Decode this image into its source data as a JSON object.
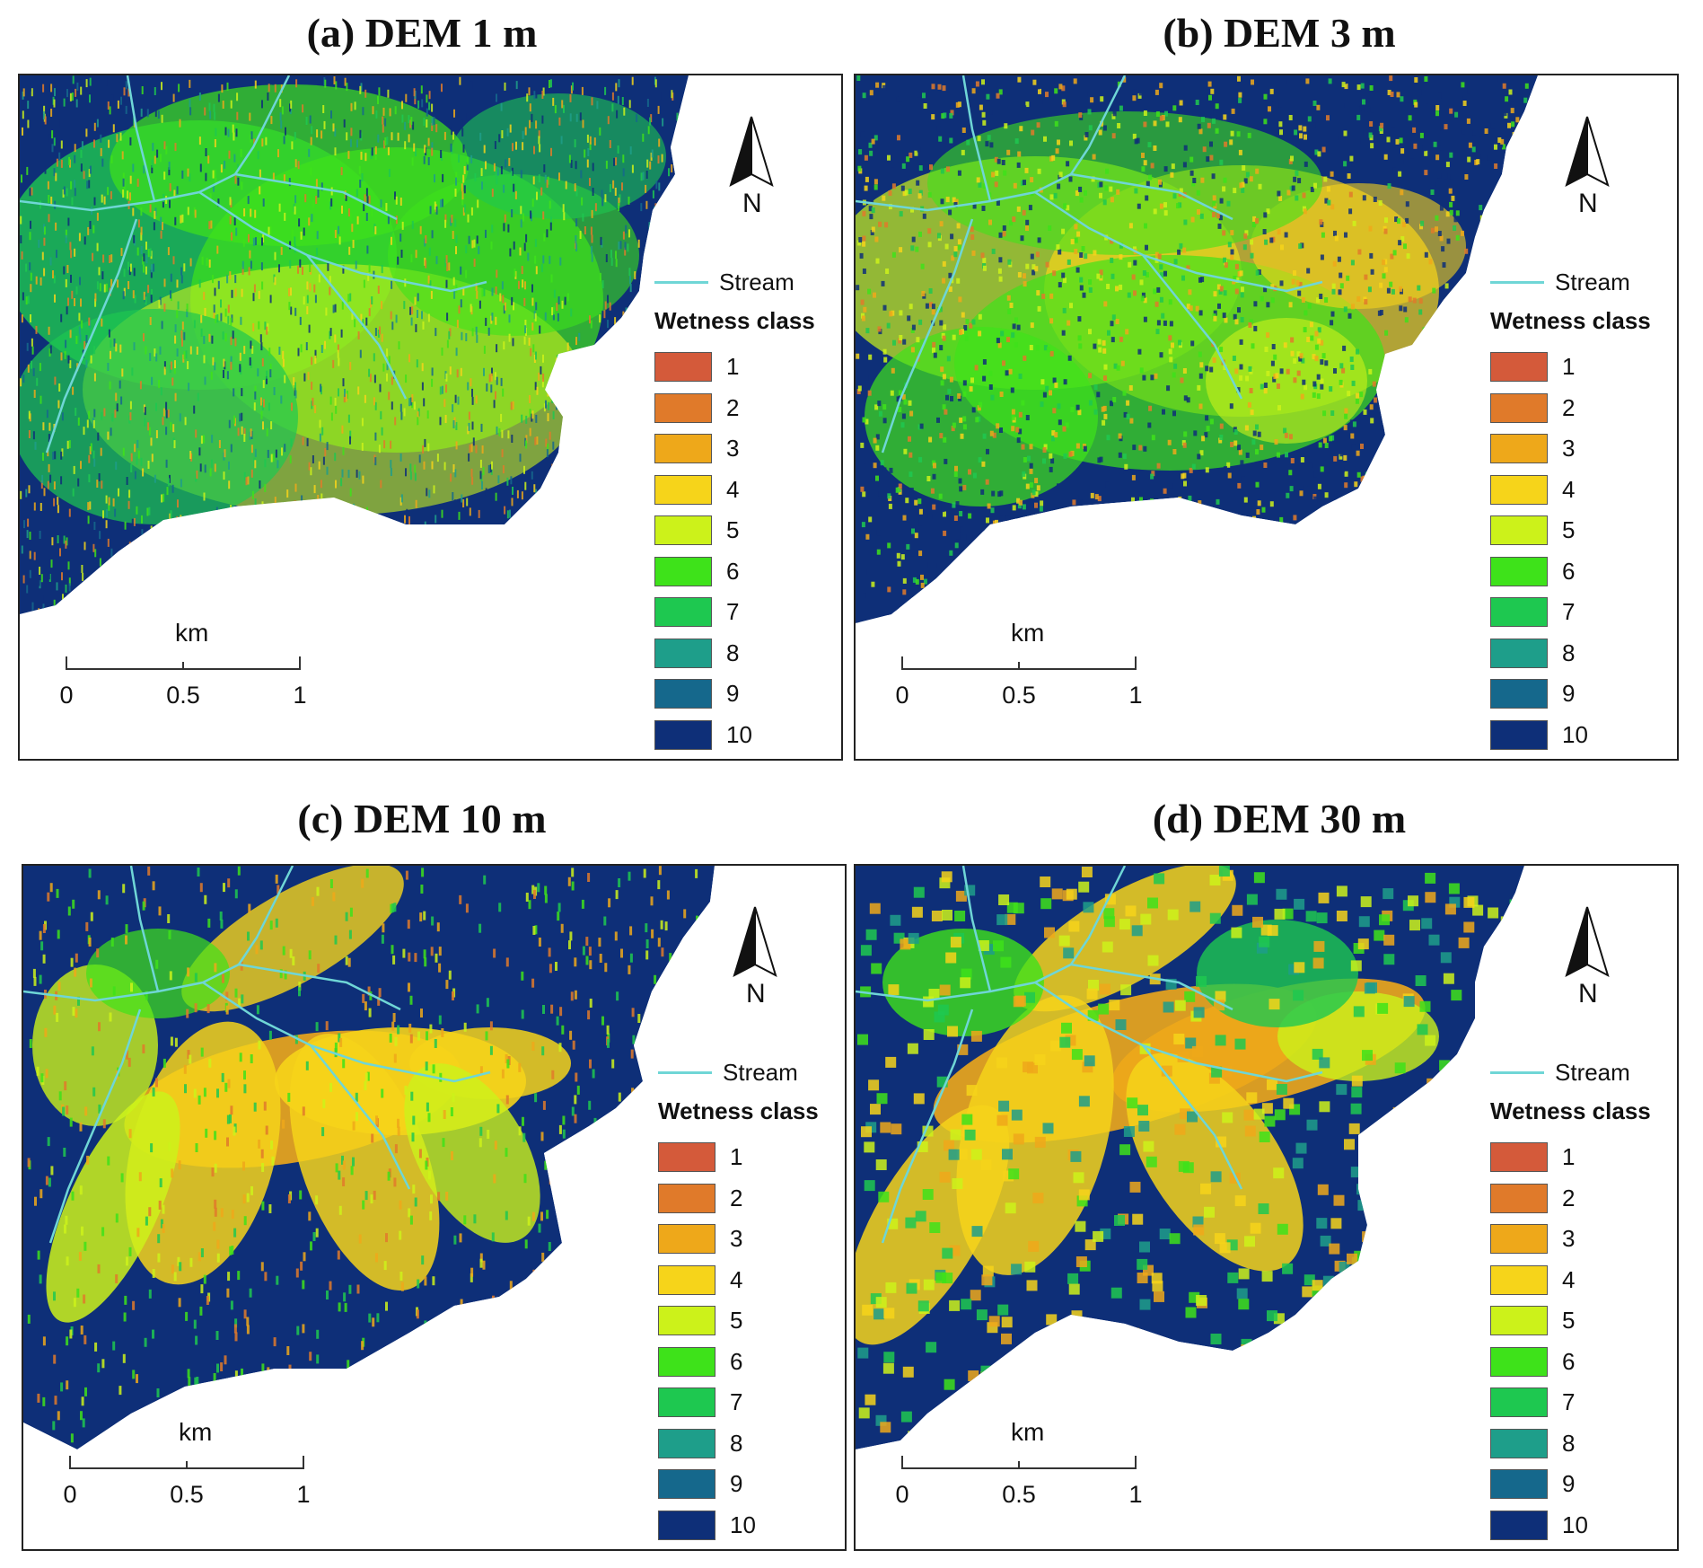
{
  "panels": [
    {
      "title": "(a) DEM 1 m"
    },
    {
      "title": "(b) DEM 3 m"
    },
    {
      "title": "(c) DEM 10 m"
    },
    {
      "title": "(d) DEM 30 m"
    }
  ],
  "legend": {
    "stream_label": "Stream",
    "title": "Wetness class",
    "classes": [
      {
        "label": "1",
        "color": "#d45a3a"
      },
      {
        "label": "2",
        "color": "#e07a2a"
      },
      {
        "label": "3",
        "color": "#eea81a"
      },
      {
        "label": "4",
        "color": "#f6d41a"
      },
      {
        "label": "5",
        "color": "#ccf21a"
      },
      {
        "label": "6",
        "color": "#3ee21a"
      },
      {
        "label": "7",
        "color": "#1ec850"
      },
      {
        "label": "8",
        "color": "#1e9e8a"
      },
      {
        "label": "9",
        "color": "#15688c"
      },
      {
        "label": "10",
        "color": "#0e2f78"
      }
    ],
    "stream_color": "#6fd6d6"
  },
  "north_arrow": {
    "letter": "N"
  },
  "scale_bar": {
    "unit": "km",
    "ticks": [
      "0",
      "0.5",
      "1"
    ]
  }
}
